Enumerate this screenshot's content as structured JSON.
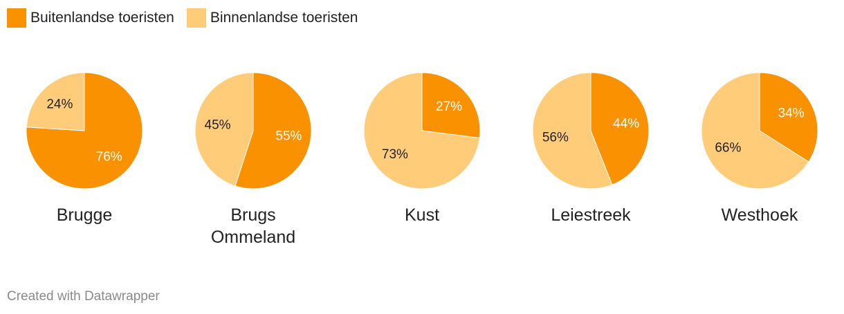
{
  "legend": [
    {
      "label": "Buitenlandse toeristen",
      "color": "#fa9100"
    },
    {
      "label": "Binnenlandse toeristen",
      "color": "#ffcc7a"
    }
  ],
  "chart_data": {
    "type": "pie",
    "series_names": [
      "Buitenlandse toeristen",
      "Binnenlandse toeristen"
    ],
    "colors": [
      "#fa9100",
      "#ffcc7a"
    ],
    "legend_position": "top-left",
    "charts": [
      {
        "title": [
          "Brugge"
        ],
        "values": [
          76,
          24
        ],
        "labels": [
          "76%",
          "24%"
        ]
      },
      {
        "title": [
          "Brugs",
          "Ommeland"
        ],
        "values": [
          55,
          45
        ],
        "labels": [
          "55%",
          "45%"
        ]
      },
      {
        "title": [
          "Kust"
        ],
        "values": [
          27,
          73
        ],
        "labels": [
          "27%",
          "73%"
        ]
      },
      {
        "title": [
          "Leiestreek"
        ],
        "values": [
          44,
          56
        ],
        "labels": [
          "44%",
          "56%"
        ]
      },
      {
        "title": [
          "Westhoek"
        ],
        "values": [
          34,
          66
        ],
        "labels": [
          "34%",
          "66%"
        ]
      }
    ]
  },
  "footer": "Created with Datawrapper"
}
